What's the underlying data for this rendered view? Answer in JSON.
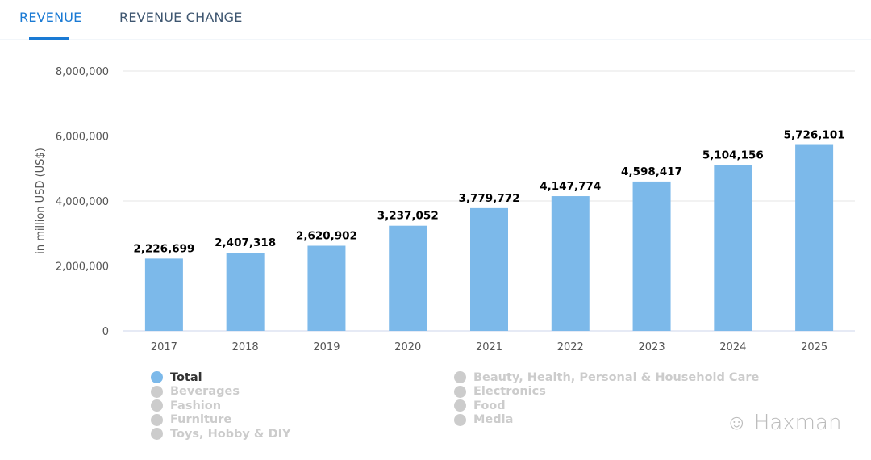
{
  "tabs": [
    {
      "label": "REVENUE",
      "active": true
    },
    {
      "label": "REVENUE CHANGE",
      "active": false
    }
  ],
  "chart_data": {
    "type": "bar",
    "categories": [
      "2017",
      "2018",
      "2019",
      "2020",
      "2021",
      "2022",
      "2023",
      "2024",
      "2025"
    ],
    "series": [
      {
        "name": "Total",
        "values": [
          2226699,
          2407318,
          2620902,
          3237052,
          3779772,
          4147774,
          4598417,
          5104156,
          5726101
        ],
        "labels": [
          "2,226,699",
          "2,407,318",
          "2,620,902",
          "3,237,052",
          "3,779,772",
          "4,147,774",
          "4,598,417",
          "5,104,156",
          "5,726,101"
        ]
      }
    ],
    "ylabel": "in million USD (US$)",
    "ylim": [
      0,
      8000000
    ],
    "yticks": [
      {
        "value": 0,
        "label": "0"
      },
      {
        "value": 2000000,
        "label": "2,000,000"
      },
      {
        "value": 4000000,
        "label": "4,000,000"
      },
      {
        "value": 6000000,
        "label": "6,000,000"
      },
      {
        "value": 8000000,
        "label": "8,000,000"
      }
    ],
    "grid": true,
    "bar_color": "#7cb9ea",
    "legend_placement": "bottom",
    "legend": {
      "col1": [
        {
          "label": "Total",
          "active": true
        },
        {
          "label": "Beverages",
          "active": false
        },
        {
          "label": "Fashion",
          "active": false
        },
        {
          "label": "Furniture",
          "active": false
        },
        {
          "label": "Toys, Hobby & DIY",
          "active": false
        }
      ],
      "col2": [
        {
          "label": "Beauty, Health, Personal & Household Care",
          "active": false
        },
        {
          "label": "Electronics",
          "active": false
        },
        {
          "label": "Food",
          "active": false
        },
        {
          "label": "Media",
          "active": false
        }
      ]
    }
  },
  "watermark": "Haxman"
}
